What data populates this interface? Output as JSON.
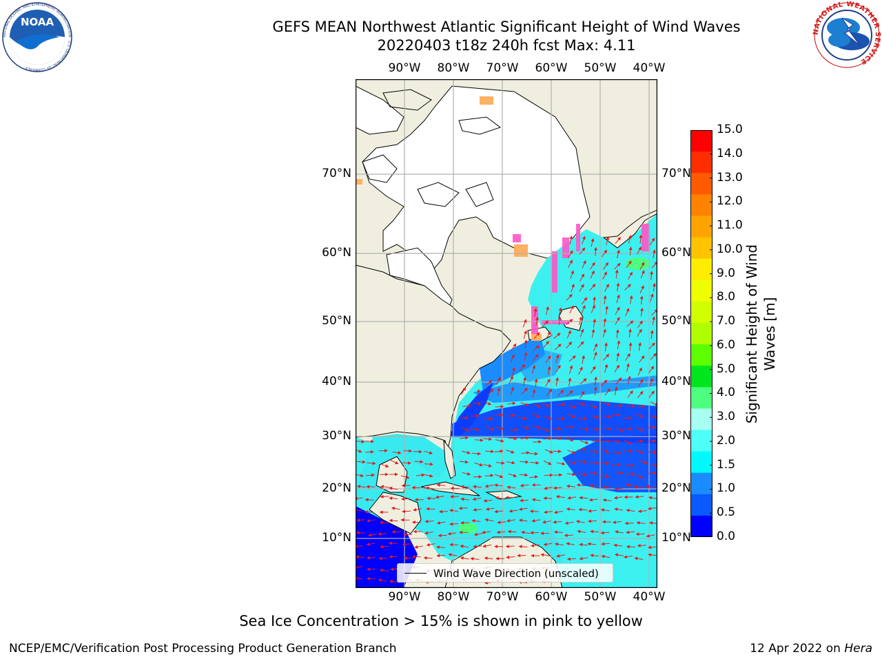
{
  "header": {
    "title_line1": "GEFS MEAN Northwest Atlantic Significant Height of Wind Waves",
    "title_line2": "20220403 t18z 240h fcst   Max: 4.11"
  },
  "logos": {
    "left": {
      "name": "NOAA",
      "text": "NOAA",
      "ring_text": "NATIONAL OCEANIC AND ATMOSPHERIC ADMINISTRATION · U.S. DEPARTMENT OF COMMERCE"
    },
    "right": {
      "name": "National Weather Service",
      "ring_text": "NATIONAL WEATHER SERVICE"
    }
  },
  "map": {
    "lon_labels": [
      "90°W",
      "80°W",
      "70°W",
      "60°W",
      "50°W",
      "40°W"
    ],
    "lat_labels": [
      "70°N",
      "60°N",
      "50°N",
      "40°N",
      "30°N",
      "20°N",
      "10°N"
    ],
    "colors": {
      "land": "#f0efdf",
      "ice_region": "#ffffff",
      "grid": "#b0b0b0",
      "arrow": "#e41a1c"
    },
    "legend_label": "Wind Wave Direction (unscaled)"
  },
  "colorbar": {
    "title": "Significant Height of Wind Waves [m]",
    "ticks": [
      "15.0",
      "14.0",
      "13.0",
      "12.0",
      "11.0",
      "10.0",
      "9.0",
      "8.0",
      "7.0",
      "6.0",
      "5.0",
      "4.0",
      "3.0",
      "2.0",
      "1.5",
      "1.0",
      "0.5",
      "0.0"
    ],
    "colors": [
      "#ff0000",
      "#ff2e00",
      "#ff5a00",
      "#ff8200",
      "#ffa300",
      "#ffc300",
      "#ffec00",
      "#f0ff00",
      "#d2ff00",
      "#b0ff00",
      "#5cff00",
      "#00e61e",
      "#4cff7e",
      "#a6fff0",
      "#4dfff6",
      "#00f8ff",
      "#1a8cff",
      "#0a5aff",
      "#0000ff"
    ]
  },
  "footer": {
    "note": "Sea Ice Concentration > 15% is shown in pink to yellow",
    "credit_left": "NCEP/EMC/Verification Post Processing Product Generation Branch",
    "credit_right_date": "12 Apr 2022 on ",
    "credit_right_host": "Hera"
  }
}
